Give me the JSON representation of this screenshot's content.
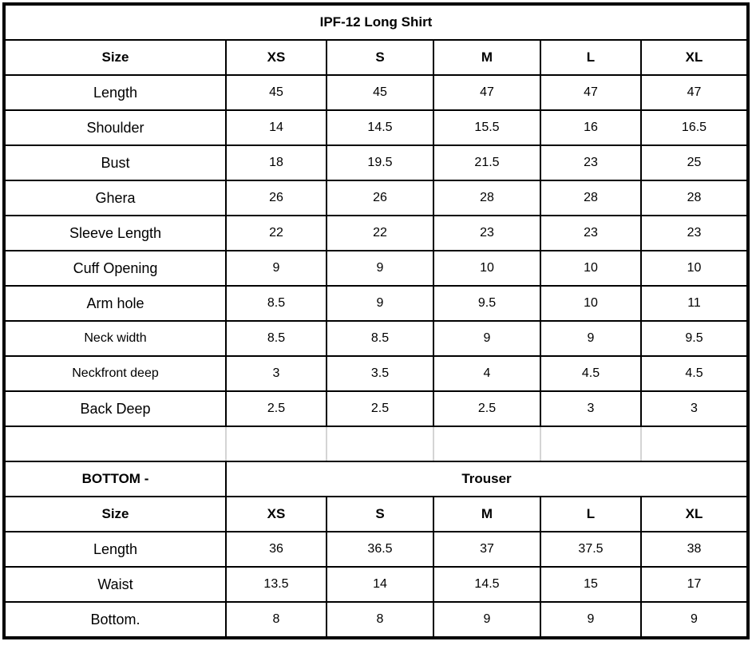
{
  "top": {
    "title": "IPF-12 Long Shirt",
    "headers": [
      "Size",
      "XS",
      "S",
      "M",
      "L",
      "XL"
    ],
    "rows": [
      {
        "label": "Length",
        "values": [
          "45",
          "45",
          "47",
          "47",
          "47"
        ]
      },
      {
        "label": "Shoulder",
        "values": [
          "14",
          "14.5",
          "15.5",
          "16",
          "16.5"
        ]
      },
      {
        "label": "Bust",
        "values": [
          "18",
          "19.5",
          "21.5",
          "23",
          "25"
        ]
      },
      {
        "label": "Ghera",
        "values": [
          "26",
          "26",
          "28",
          "28",
          "28"
        ]
      },
      {
        "label": "Sleeve Length",
        "values": [
          "22",
          "22",
          "23",
          "23",
          "23"
        ]
      },
      {
        "label": "Cuff Opening",
        "values": [
          "9",
          "9",
          "10",
          "10",
          "10"
        ]
      },
      {
        "label": "Arm hole",
        "values": [
          "8.5",
          "9",
          "9.5",
          "10",
          "11"
        ]
      },
      {
        "label": "Neck width",
        "values": [
          "8.5",
          "8.5",
          "9",
          "9",
          "9.5"
        ]
      },
      {
        "label": "Neckfront deep",
        "values": [
          "3",
          "3.5",
          "4",
          "4.5",
          "4.5"
        ]
      },
      {
        "label": "Back Deep",
        "values": [
          "2.5",
          "2.5",
          "2.5",
          "3",
          "3"
        ]
      }
    ]
  },
  "bottom": {
    "label": "BOTTOM -",
    "title": "Trouser",
    "headers": [
      "Size",
      "XS",
      "S",
      "M",
      "L",
      "XL"
    ],
    "rows": [
      {
        "label": "Length",
        "values": [
          "36",
          "36.5",
          "37",
          "37.5",
          "38"
        ]
      },
      {
        "label": "Waist",
        "values": [
          "13.5",
          "14",
          "14.5",
          "15",
          "17"
        ]
      },
      {
        "label": "Bottom.",
        "values": [
          "8",
          "8",
          "9",
          "9",
          "9"
        ]
      }
    ]
  }
}
